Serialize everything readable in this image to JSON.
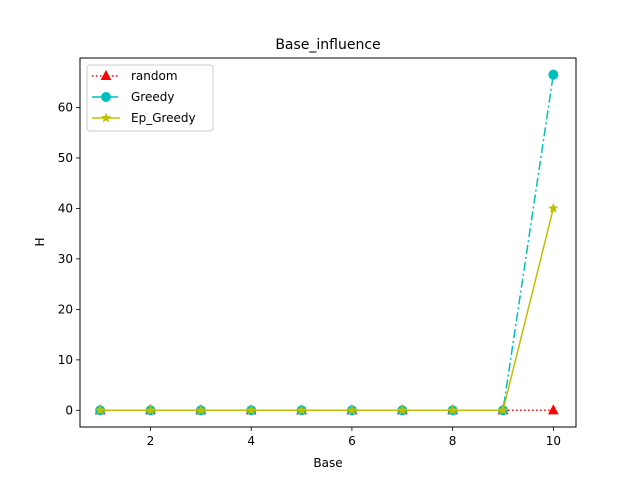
{
  "chart_data": {
    "type": "line",
    "title": "Base_influence",
    "xlabel": "Base",
    "ylabel": "H",
    "x": [
      1,
      2,
      3,
      4,
      5,
      6,
      7,
      8,
      9,
      10
    ],
    "xlim": [
      0.6,
      10.45
    ],
    "ylim": [
      -3.3,
      69.8
    ],
    "xticks": [
      2,
      4,
      6,
      8,
      10
    ],
    "yticks": [
      0,
      10,
      20,
      30,
      40,
      50,
      60
    ],
    "grid": false,
    "legend_position": "top-left",
    "series": [
      {
        "name": "random",
        "values": [
          0,
          0,
          0,
          0,
          0,
          0,
          0,
          0,
          0,
          0
        ],
        "color": "#ff0000",
        "linestyle": "dotted",
        "marker": "triangle"
      },
      {
        "name": "Greedy",
        "values": [
          0,
          0,
          0,
          0,
          0,
          0,
          0,
          0,
          0,
          66.5
        ],
        "color": "#00bfbf",
        "linestyle": "dashdot",
        "marker": "circle"
      },
      {
        "name": "Ep_Greedy",
        "values": [
          0,
          0,
          0,
          0,
          0,
          0,
          0,
          0,
          0,
          40
        ],
        "color": "#bfbf00",
        "linestyle": "solid",
        "marker": "star"
      }
    ]
  }
}
